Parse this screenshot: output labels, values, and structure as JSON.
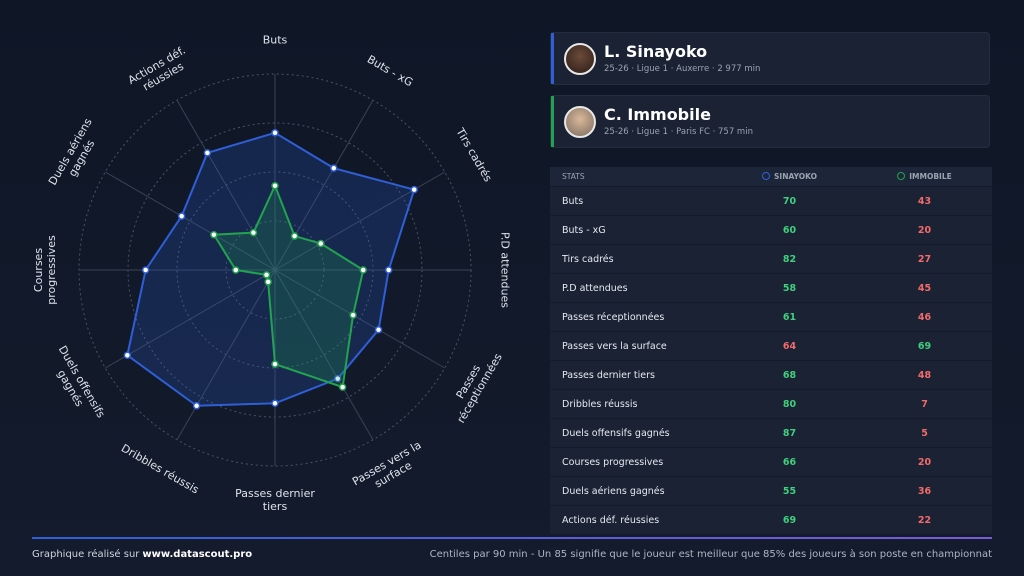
{
  "chart_data": {
    "type": "radar",
    "categories": [
      "Buts",
      "Buts - xG",
      "Tirs cadrés",
      "P.D attendues",
      "Passes réceptionnées",
      "Passes vers la surface",
      "Passes dernier tiers",
      "Dribbles réussis",
      "Duels offensifs gagnés",
      "Courses progressives",
      "Duels aériens gagnés",
      "Actions déf. réussies"
    ],
    "series": [
      {
        "name": "SINAYOKO",
        "color": "#2f5fd6",
        "values": [
          70,
          60,
          82,
          58,
          61,
          64,
          68,
          80,
          87,
          66,
          55,
          69
        ]
      },
      {
        "name": "IMMOBILE",
        "color": "#22a34f",
        "values": [
          43,
          20,
          27,
          45,
          46,
          69,
          48,
          7,
          5,
          20,
          36,
          22
        ]
      }
    ],
    "rlim": [
      0,
      100
    ],
    "rticks": [
      25,
      50,
      75,
      100
    ],
    "grid": true
  },
  "players": [
    {
      "name": "L. Sinayoko",
      "details": "25-26 · Ligue 1 · Auxerre · 2 977 min"
    },
    {
      "name": "C. Immobile",
      "details": "25-26 · Ligue 1 · Paris FC · 757 min"
    }
  ],
  "table": {
    "header": "STATS"
  },
  "footer": {
    "credit_prefix": "Graphique réalisé sur",
    "credit_site": "www.datascout.pro",
    "note": "Centiles par 90 min - Un 85 signifie que le joueur est meilleur que 85% des joueurs à son poste en championnat"
  }
}
